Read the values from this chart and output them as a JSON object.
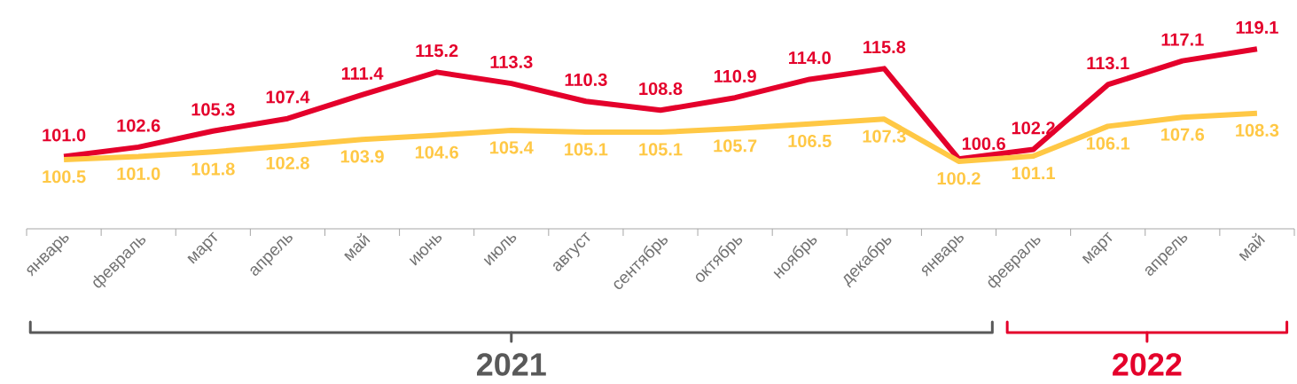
{
  "chart_data": {
    "type": "line",
    "categories": [
      "январь",
      "февраль",
      "март",
      "апрель",
      "май",
      "июнь",
      "июль",
      "август",
      "сентябрь",
      "октябрь",
      "ноябрь",
      "декабрь",
      "январь",
      "февраль",
      "март",
      "апрель",
      "май"
    ],
    "series": [
      {
        "color": "#e4002b",
        "values": [
          101.0,
          102.6,
          105.3,
          107.4,
          111.4,
          115.2,
          113.3,
          110.3,
          108.8,
          110.9,
          114.0,
          115.8,
          100.6,
          102.2,
          113.1,
          117.1,
          119.1
        ],
        "value_labels": [
          "101.0",
          "102.6",
          "105.3",
          "107.4",
          "111.4",
          "115.2",
          "113.3",
          "110.3",
          "108.8",
          "110.9",
          "114.0",
          "115.8",
          "100.6",
          "102.2",
          "113.1",
          "117.1",
          "119.1"
        ]
      },
      {
        "color": "#ffc845",
        "values": [
          100.5,
          101.0,
          101.8,
          102.8,
          103.9,
          104.6,
          105.4,
          105.1,
          105.1,
          105.7,
          106.5,
          107.3,
          100.2,
          101.1,
          106.1,
          107.6,
          108.3
        ],
        "value_labels": [
          "100.5",
          "101.0",
          "101.8",
          "102.8",
          "103.9",
          "104.6",
          "105.4",
          "105.1",
          "105.1",
          "105.7",
          "106.5",
          "107.3",
          "100.2",
          "101.1",
          "106.1",
          "107.6",
          "108.3"
        ]
      }
    ],
    "marker": "none",
    "line_style": "solid",
    "annotations": [
      "2021",
      "2022"
    ]
  }
}
